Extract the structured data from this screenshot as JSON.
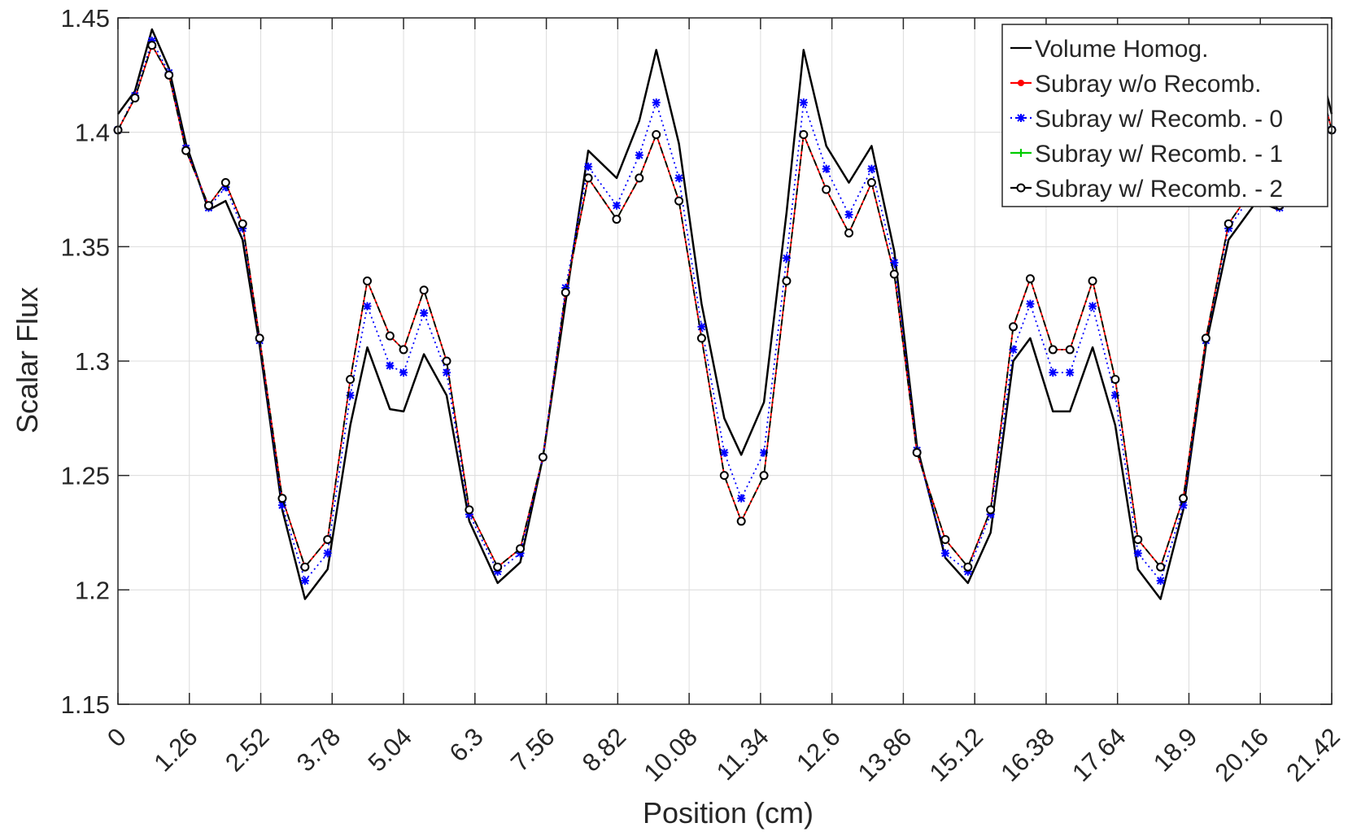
{
  "chart_data": {
    "type": "line",
    "title": "",
    "xlabel": "Position (cm)",
    "ylabel": "Scalar Flux",
    "xlim": [
      0,
      21.42
    ],
    "ylim": [
      1.15,
      1.45
    ],
    "xticks": [
      0,
      1.26,
      2.52,
      3.78,
      5.04,
      6.3,
      7.56,
      8.82,
      10.08,
      11.34,
      12.6,
      13.86,
      15.12,
      16.38,
      17.64,
      18.9,
      20.16,
      21.42
    ],
    "xtick_labels": [
      "0",
      "1.26",
      "2.52",
      "3.78",
      "5.04",
      "6.3",
      "7.56",
      "8.82",
      "10.08",
      "11.34",
      "12.6",
      "13.86",
      "15.12",
      "16.38",
      "17.64",
      "18.9",
      "20.16",
      "21.42"
    ],
    "yticks": [
      1.15,
      1.2,
      1.25,
      1.3,
      1.35,
      1.4,
      1.45
    ],
    "ytick_labels": [
      "1.15",
      "1.2",
      "1.25",
      "1.3",
      "1.35",
      "1.4",
      "1.45"
    ],
    "grid": true,
    "legend_position": "top-right",
    "series": [
      {
        "name": "Volume Homog.",
        "color": "#000000",
        "style": "solid",
        "marker": "none",
        "x": [
          0,
          0.3,
          0.6,
          0.9,
          1.2,
          1.6,
          1.9,
          2.2,
          2.5,
          2.9,
          3.3,
          3.7,
          4.1,
          4.4,
          4.8,
          5.04,
          5.4,
          5.8,
          6.2,
          6.7,
          7.1,
          7.5,
          7.9,
          8.3,
          8.8,
          9.2,
          9.5,
          9.9,
          10.3,
          10.7,
          11.0,
          11.4,
          11.8,
          12.1,
          12.5,
          12.9,
          13.3,
          13.7,
          14.1,
          14.6,
          15.0,
          15.4,
          15.8,
          16.1,
          16.5,
          16.8,
          17.2,
          17.6,
          18.0,
          18.4,
          18.8,
          19.2,
          19.6,
          20.1,
          20.5,
          20.8,
          21.1,
          21.42
        ],
        "y": [
          1.408,
          1.418,
          1.445,
          1.428,
          1.395,
          1.366,
          1.37,
          1.353,
          1.307,
          1.235,
          1.196,
          1.209,
          1.272,
          1.306,
          1.279,
          1.278,
          1.303,
          1.285,
          1.23,
          1.203,
          1.212,
          1.258,
          1.326,
          1.392,
          1.38,
          1.405,
          1.436,
          1.395,
          1.325,
          1.275,
          1.259,
          1.282,
          1.365,
          1.436,
          1.394,
          1.378,
          1.394,
          1.348,
          1.263,
          1.214,
          1.203,
          1.225,
          1.3,
          1.31,
          1.278,
          1.278,
          1.306,
          1.272,
          1.209,
          1.196,
          1.235,
          1.307,
          1.353,
          1.37,
          1.366,
          1.395,
          1.44,
          1.408
        ]
      },
      {
        "name": "Subray w/o Recomb.",
        "color": "#ff0000",
        "style": "solid",
        "marker": "dot",
        "x": [
          0,
          0.3,
          0.6,
          0.9,
          1.2,
          1.6,
          1.9,
          2.2,
          2.5,
          2.9,
          3.3,
          3.7,
          4.1,
          4.4,
          4.8,
          5.04,
          5.4,
          5.8,
          6.2,
          6.7,
          7.1,
          7.5,
          7.9,
          8.3,
          8.8,
          9.2,
          9.5,
          9.9,
          10.3,
          10.7,
          11.0,
          11.4,
          11.8,
          12.1,
          12.5,
          12.9,
          13.3,
          13.7,
          14.1,
          14.6,
          15.0,
          15.4,
          15.8,
          16.1,
          16.5,
          16.8,
          17.2,
          17.6,
          18.0,
          18.4,
          18.8,
          19.2,
          19.6,
          20.1,
          20.5,
          20.8,
          21.1,
          21.42
        ],
        "y": [
          1.401,
          1.415,
          1.438,
          1.425,
          1.392,
          1.368,
          1.378,
          1.36,
          1.31,
          1.24,
          1.21,
          1.222,
          1.292,
          1.335,
          1.311,
          1.305,
          1.331,
          1.3,
          1.235,
          1.21,
          1.218,
          1.258,
          1.33,
          1.38,
          1.362,
          1.38,
          1.399,
          1.37,
          1.31,
          1.25,
          1.23,
          1.25,
          1.335,
          1.399,
          1.375,
          1.356,
          1.378,
          1.338,
          1.26,
          1.222,
          1.21,
          1.235,
          1.315,
          1.336,
          1.305,
          1.305,
          1.335,
          1.292,
          1.222,
          1.21,
          1.24,
          1.31,
          1.36,
          1.378,
          1.368,
          1.392,
          1.432,
          1.401
        ]
      },
      {
        "name": "Subray w/ Recomb. - 0",
        "color": "#0000ff",
        "style": "dotted",
        "marker": "star",
        "x": [
          0,
          0.3,
          0.6,
          0.9,
          1.2,
          1.6,
          1.9,
          2.2,
          2.5,
          2.9,
          3.3,
          3.7,
          4.1,
          4.4,
          4.8,
          5.04,
          5.4,
          5.8,
          6.2,
          6.7,
          7.1,
          7.5,
          7.9,
          8.3,
          8.8,
          9.2,
          9.5,
          9.9,
          10.3,
          10.7,
          11.0,
          11.4,
          11.8,
          12.1,
          12.5,
          12.9,
          13.3,
          13.7,
          14.1,
          14.6,
          15.0,
          15.4,
          15.8,
          16.1,
          16.5,
          16.8,
          17.2,
          17.6,
          18.0,
          18.4,
          18.8,
          19.2,
          19.6,
          20.1,
          20.5,
          20.8,
          21.1,
          21.42
        ],
        "y": [
          1.401,
          1.416,
          1.44,
          1.426,
          1.393,
          1.367,
          1.376,
          1.358,
          1.309,
          1.237,
          1.204,
          1.216,
          1.285,
          1.324,
          1.298,
          1.295,
          1.321,
          1.295,
          1.233,
          1.208,
          1.216,
          1.258,
          1.332,
          1.385,
          1.368,
          1.39,
          1.413,
          1.38,
          1.315,
          1.26,
          1.24,
          1.26,
          1.345,
          1.413,
          1.384,
          1.364,
          1.384,
          1.343,
          1.261,
          1.216,
          1.208,
          1.233,
          1.305,
          1.325,
          1.295,
          1.295,
          1.324,
          1.285,
          1.216,
          1.204,
          1.237,
          1.309,
          1.358,
          1.376,
          1.367,
          1.393,
          1.434,
          1.401
        ]
      },
      {
        "name": "Subray w/ Recomb. - 1",
        "color": "#00cc00",
        "style": "dashdot",
        "marker": "plus",
        "x": [
          0,
          0.3,
          0.6,
          0.9,
          1.2,
          1.6,
          1.9,
          2.2,
          2.5,
          2.9,
          3.3,
          3.7,
          4.1,
          4.4,
          4.8,
          5.04,
          5.4,
          5.8,
          6.2,
          6.7,
          7.1,
          7.5,
          7.9,
          8.3,
          8.8,
          9.2,
          9.5,
          9.9,
          10.3,
          10.7,
          11.0,
          11.4,
          11.8,
          12.1,
          12.5,
          12.9,
          13.3,
          13.7,
          14.1,
          14.6,
          15.0,
          15.4,
          15.8,
          16.1,
          16.5,
          16.8,
          17.2,
          17.6,
          18.0,
          18.4,
          18.8,
          19.2,
          19.6,
          20.1,
          20.5,
          20.8,
          21.1,
          21.42
        ],
        "y": [
          1.401,
          1.415,
          1.438,
          1.425,
          1.392,
          1.368,
          1.378,
          1.36,
          1.31,
          1.24,
          1.21,
          1.222,
          1.292,
          1.335,
          1.311,
          1.305,
          1.331,
          1.3,
          1.235,
          1.21,
          1.218,
          1.258,
          1.33,
          1.38,
          1.362,
          1.38,
          1.399,
          1.37,
          1.31,
          1.25,
          1.23,
          1.25,
          1.335,
          1.399,
          1.375,
          1.356,
          1.378,
          1.338,
          1.26,
          1.222,
          1.21,
          1.235,
          1.315,
          1.336,
          1.305,
          1.305,
          1.335,
          1.292,
          1.222,
          1.21,
          1.24,
          1.31,
          1.36,
          1.378,
          1.368,
          1.392,
          1.432,
          1.401
        ]
      },
      {
        "name": "Subray w/ Recomb. - 2",
        "color": "#000000",
        "style": "dashdot",
        "marker": "circle",
        "x": [
          0,
          0.3,
          0.6,
          0.9,
          1.2,
          1.6,
          1.9,
          2.2,
          2.5,
          2.9,
          3.3,
          3.7,
          4.1,
          4.4,
          4.8,
          5.04,
          5.4,
          5.8,
          6.2,
          6.7,
          7.1,
          7.5,
          7.9,
          8.3,
          8.8,
          9.2,
          9.5,
          9.9,
          10.3,
          10.7,
          11.0,
          11.4,
          11.8,
          12.1,
          12.5,
          12.9,
          13.3,
          13.7,
          14.1,
          14.6,
          15.0,
          15.4,
          15.8,
          16.1,
          16.5,
          16.8,
          17.2,
          17.6,
          18.0,
          18.4,
          18.8,
          19.2,
          19.6,
          20.1,
          20.5,
          20.8,
          21.1,
          21.42
        ],
        "y": [
          1.401,
          1.415,
          1.438,
          1.425,
          1.392,
          1.368,
          1.378,
          1.36,
          1.31,
          1.24,
          1.21,
          1.222,
          1.292,
          1.335,
          1.311,
          1.305,
          1.331,
          1.3,
          1.235,
          1.21,
          1.218,
          1.258,
          1.33,
          1.38,
          1.362,
          1.38,
          1.399,
          1.37,
          1.31,
          1.25,
          1.23,
          1.25,
          1.335,
          1.399,
          1.375,
          1.356,
          1.378,
          1.338,
          1.26,
          1.222,
          1.21,
          1.235,
          1.315,
          1.336,
          1.305,
          1.305,
          1.335,
          1.292,
          1.222,
          1.21,
          1.24,
          1.31,
          1.36,
          1.378,
          1.368,
          1.392,
          1.432,
          1.401
        ]
      }
    ]
  }
}
